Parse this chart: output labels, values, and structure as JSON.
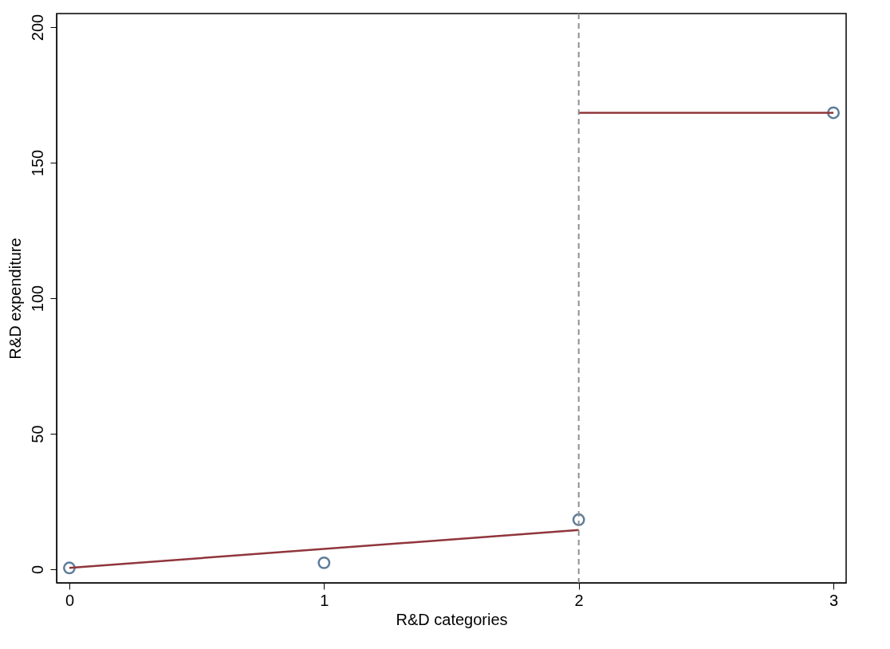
{
  "chart_data": {
    "type": "scatter",
    "xlabel": "R&D categories",
    "ylabel": "R&D expenditure",
    "series": [
      {
        "marker": "circle",
        "color": "#1a476f",
        "x": [
          0,
          1,
          2,
          3
        ],
        "values": [
          0.5,
          2.4,
          18.3,
          168.4
        ]
      },
      {
        "type": "line",
        "color": "#90353b",
        "x": [
          0,
          2
        ],
        "values": [
          0.5,
          14.5
        ]
      },
      {
        "type": "line",
        "color": "#90353b",
        "x": [
          2,
          3
        ],
        "values": [
          168.4,
          168.4
        ]
      }
    ],
    "xlim": [
      -0.05,
      3.05
    ],
    "ylim": [
      -5,
      205
    ],
    "xticks": [
      0,
      1,
      2,
      3
    ],
    "yticks": [
      0,
      50,
      100,
      150,
      200
    ],
    "ref_lines": [
      {
        "axis": "x",
        "value": 2,
        "color": "#909090",
        "line_style": "dashed"
      }
    ]
  }
}
